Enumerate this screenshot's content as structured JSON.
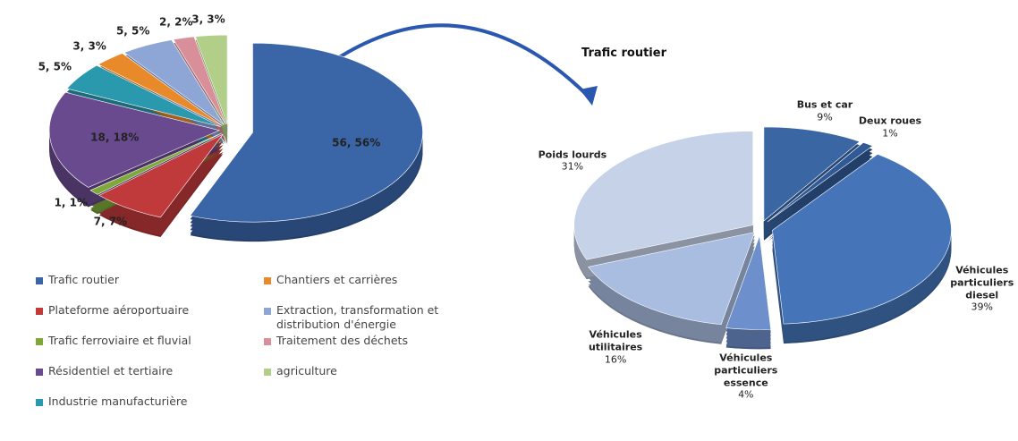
{
  "chart_data": [
    {
      "type": "pie",
      "categories": [
        "Trafic routier",
        "Plateforme aéroportuaire",
        "Trafic ferroviaire et fluvial",
        "Résidentiel et tertiaire",
        "Industrie manufacturière",
        "Chantiers et carrières",
        "Extraction, transformation et distribution d'énergie",
        "Traitement des déchets",
        "agriculture"
      ],
      "values": [
        56,
        7,
        1,
        18,
        5,
        3,
        5,
        2,
        3
      ],
      "value_labels": [
        "56, 56%",
        "7, 7%",
        "1, 1%",
        "18, 18%",
        "5, 5%",
        "3, 3%",
        "5, 5%",
        "2, 2%",
        "3, 3%"
      ],
      "colors": [
        "#3a66a8",
        "#c0393b",
        "#7ea83a",
        "#6a4a8e",
        "#2a98ad",
        "#e88a2a",
        "#8ea6d6",
        "#d98f9a",
        "#b2cf8a"
      ],
      "legend": "bottom"
    },
    {
      "type": "pie",
      "title": "Trafic routier",
      "categories": [
        "Bus et car",
        "Deux roues",
        "Véhicules particuliers diesel",
        "Véhicules particuliers essence",
        "Véhicules utilitaires",
        "Poids lourds"
      ],
      "values": [
        9,
        1,
        39,
        4,
        16,
        31
      ],
      "value_labels": [
        "9%",
        "1%",
        "39%",
        "4%",
        "16%",
        "31%"
      ],
      "colors": [
        "#3b66a4",
        "#2f5a96",
        "#4575b8",
        "#6d8fcb",
        "#a9bde0",
        "#c6d2e8"
      ]
    }
  ]
}
